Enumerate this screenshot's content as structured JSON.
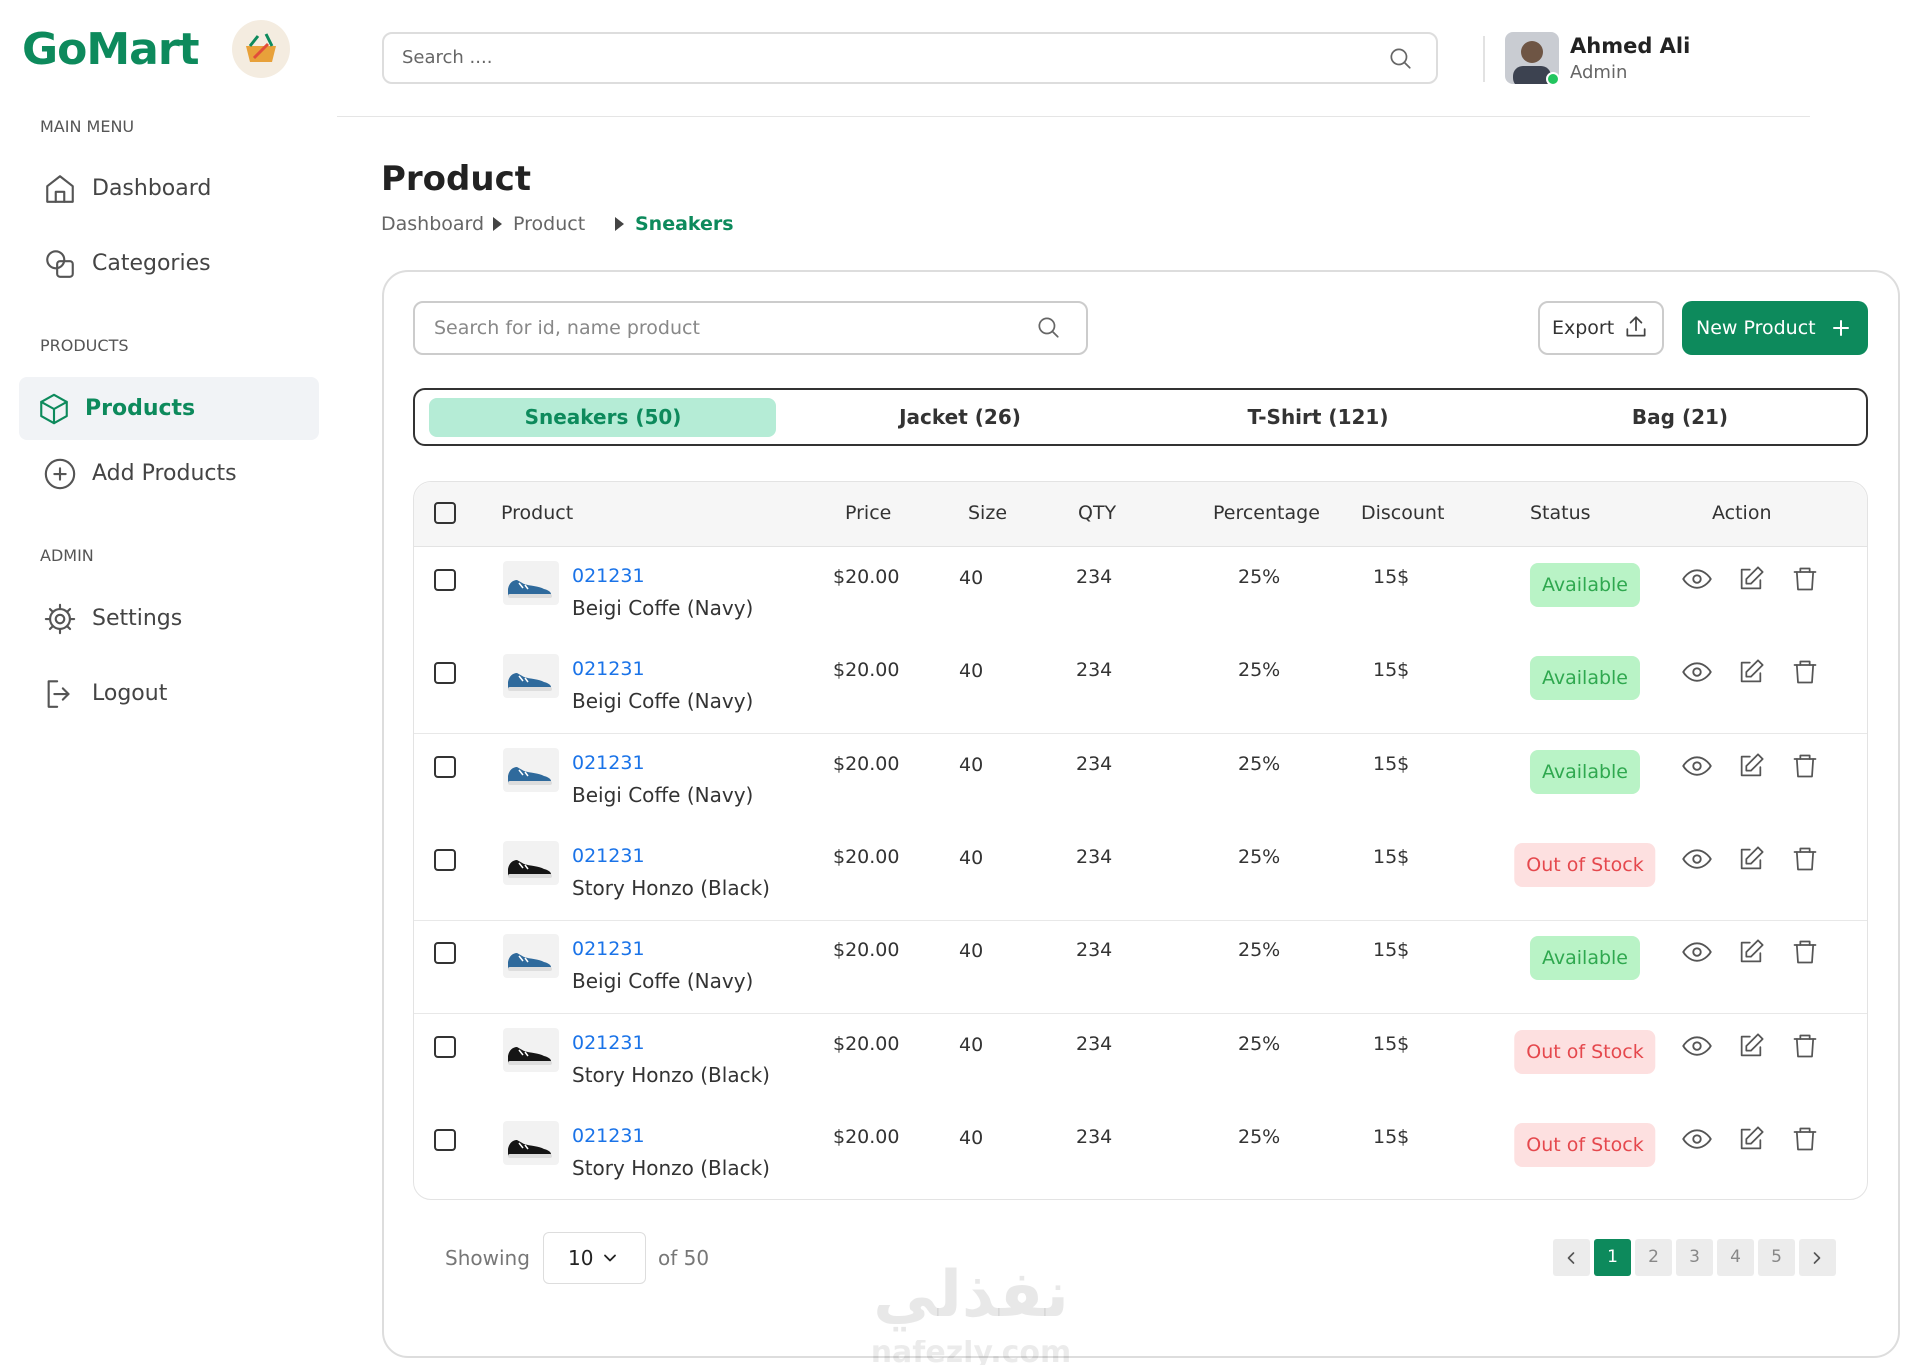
{
  "brand": "GoMart",
  "search_placeholder": "Search ....",
  "user": {
    "name": "Ahmed Ali",
    "role": "Admin"
  },
  "sidebar": [
    {
      "title": "MAIN MENU",
      "items": [
        "Dashboard",
        "Categories"
      ]
    },
    {
      "title": "PRODUCTS",
      "items": [
        "Products",
        "Add Products"
      ]
    },
    {
      "title": "ADMIN",
      "items": [
        "Settings",
        "Logout"
      ]
    }
  ],
  "page_title": "Product",
  "breadcrumb": [
    "Dashboard",
    "Product",
    "Sneakers"
  ],
  "product_search_placeholder": "Search for id, name product",
  "export": "Export",
  "new_product": "New Product",
  "tabs": [
    "Sneakers (50)",
    "Jacket (26)",
    "T-Shirt (121)",
    "Bag (21)"
  ],
  "table": {
    "columns": [
      "Product",
      "Price",
      "Size",
      "QTY",
      "Percentage",
      "Discount",
      "Status",
      "Action"
    ],
    "rows": [
      {
        "id": "021231",
        "name": "Beigi Coffe (Navy)",
        "price": "$20.00",
        "size": "40",
        "qty": "234",
        "percentage": "25%",
        "discount": "15$",
        "status": "Available",
        "status_color": "#2fa84f",
        "status_bg": "#b9f3c6",
        "shoe_color": "#2f6a9c"
      },
      {
        "id": "021231",
        "name": "Beigi Coffe (Navy)",
        "price": "$20.00",
        "size": "40",
        "qty": "234",
        "percentage": "25%",
        "discount": "15$",
        "status": "Available",
        "status_color": "#2fa84f",
        "status_bg": "#b9f3c6",
        "shoe_color": "#2f6a9c"
      },
      {
        "id": "021231",
        "name": "Beigi Coffe (Navy)",
        "price": "$20.00",
        "size": "40",
        "qty": "234",
        "percentage": "25%",
        "discount": "15$",
        "status": "Available",
        "status_color": "#2fa84f",
        "status_bg": "#b9f3c6",
        "shoe_color": "#2f6a9c"
      },
      {
        "id": "021231",
        "name": "Story Honzo (Black)",
        "price": "$20.00",
        "size": "40",
        "qty": "234",
        "percentage": "25%",
        "discount": "15$",
        "status": "Out of Stock",
        "status_color": "#e5484d",
        "status_bg": "#fde0e0",
        "shoe_color": "#151515"
      },
      {
        "id": "021231",
        "name": "Beigi Coffe (Navy)",
        "price": "$20.00",
        "size": "40",
        "qty": "234",
        "percentage": "25%",
        "discount": "15$",
        "status": "Available",
        "status_color": "#2fa84f",
        "status_bg": "#b9f3c6",
        "shoe_color": "#2f6a9c"
      },
      {
        "id": "021231",
        "name": "Story Honzo (Black)",
        "price": "$20.00",
        "size": "40",
        "qty": "234",
        "percentage": "25%",
        "discount": "15$",
        "status": "Out of Stock",
        "status_color": "#e5484d",
        "status_bg": "#fde0e0",
        "shoe_color": "#151515"
      },
      {
        "id": "021231",
        "name": "Story Honzo (Black)",
        "price": "$20.00",
        "size": "40",
        "qty": "234",
        "percentage": "25%",
        "discount": "15$",
        "status": "Out of Stock",
        "status_color": "#e5484d",
        "status_bg": "#fde0e0",
        "shoe_color": "#151515"
      }
    ]
  },
  "pagination": {
    "showing": "Showing",
    "per_page": "10",
    "of": "of 50",
    "pages": [
      "1",
      "2",
      "3",
      "4",
      "5"
    ]
  },
  "watermark": [
    "نفذلي",
    "nafezly.com"
  ]
}
